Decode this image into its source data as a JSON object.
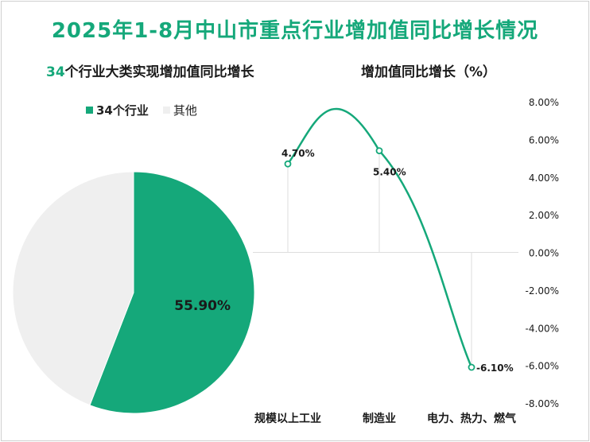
{
  "title": "2025年1-8月中山市重点行业增加值同比增长情况",
  "pie_subtitle_number": "34",
  "pie_subtitle_text": "个行业大类实现增加值同比增长",
  "line_title": "增加值同比增长（%）",
  "colors": {
    "accent": "#15a87a",
    "other": "#efefef",
    "grid": "#dedede"
  },
  "chart_data": [
    {
      "type": "pie",
      "title": "34个行业大类实现增加值同比增长",
      "slices": [
        {
          "label": "34个行业",
          "value": 55.9,
          "color": "#15a87a",
          "data_label": "55.90%"
        },
        {
          "label": "其他",
          "value": 44.1,
          "color": "#efefef",
          "data_label": ""
        }
      ],
      "legend": "top-left"
    },
    {
      "type": "line",
      "title": "增加值同比增长（%）",
      "categories": [
        "规模以上工业",
        "制造业",
        "电力、热力、燃气"
      ],
      "values": [
        4.7,
        5.4,
        -6.1
      ],
      "data_labels": [
        "4.70%",
        "5.40%",
        "-6.10%"
      ],
      "ylim": [
        -8,
        8
      ],
      "yticks": [
        8,
        6,
        4,
        2,
        0,
        -2,
        -4,
        -6,
        -8
      ],
      "ytick_labels": [
        "8.00%",
        "6.00%",
        "4.00%",
        "2.00%",
        "0.00%",
        "-2.00%",
        "-4.00%",
        "-6.00%",
        "-8.00%"
      ],
      "yaxis_side": "right",
      "smooth": true,
      "grid": true
    }
  ]
}
